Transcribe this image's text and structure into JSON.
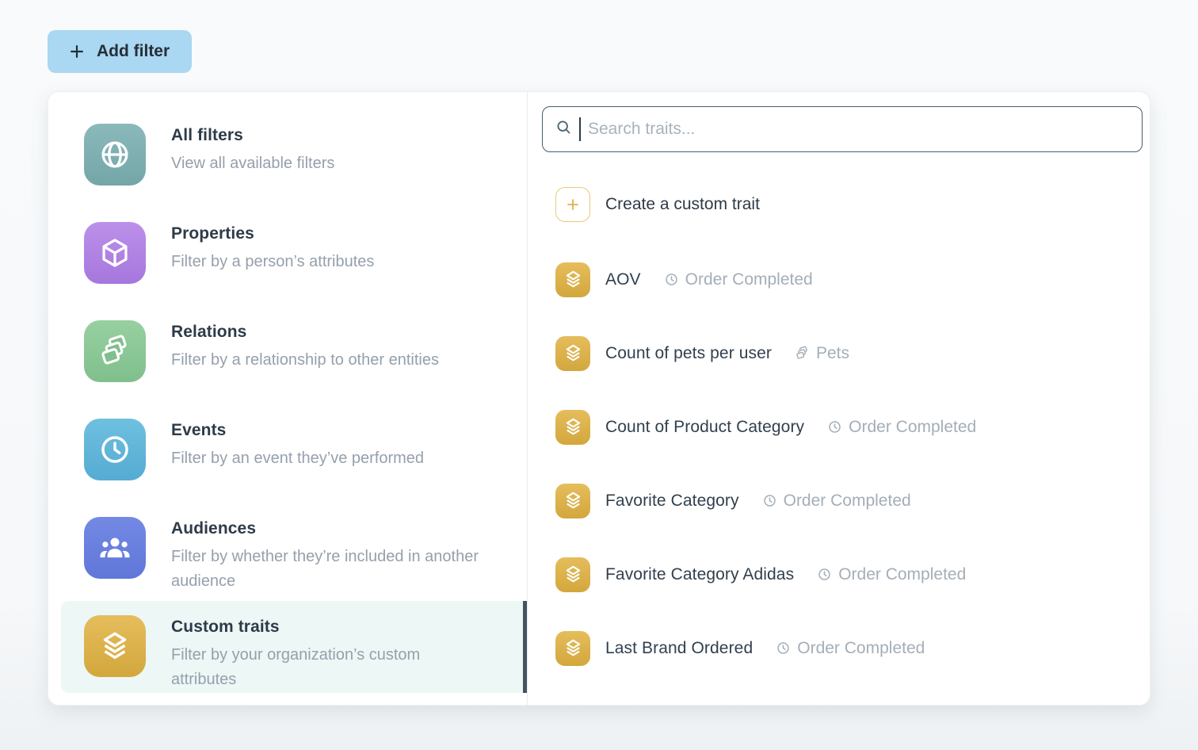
{
  "add_filter_button": {
    "label": "Add filter"
  },
  "colors": {
    "accent_blue": "#aad7f1",
    "selected_row_bg": "#ecf7f6",
    "selected_bar": "#42555f",
    "trait_gold_top": "#e5bd5c",
    "trait_gold_bottom": "#d3a73d"
  },
  "sidebar": {
    "categories": [
      {
        "title": "All filters",
        "subtitle": "View all available filters",
        "icon": "globe-icon",
        "color_top": "#8ab9ba",
        "color_bottom": "#74a6a8",
        "selected": false
      },
      {
        "title": "Properties",
        "subtitle": "Filter by a person’s attributes",
        "icon": "cube-icon",
        "color_top": "#bb90e9",
        "color_bottom": "#a677dd",
        "selected": false
      },
      {
        "title": "Relations",
        "subtitle": "Filter by a relationship to other entities",
        "icon": "stacked-cards-icon",
        "color_top": "#97d0a1",
        "color_bottom": "#80bf8d",
        "selected": false
      },
      {
        "title": "Events",
        "subtitle": "Filter by an event they’ve performed",
        "icon": "clock-icon",
        "color_top": "#6fc0e0",
        "color_bottom": "#55abd2",
        "selected": false
      },
      {
        "title": "Audiences",
        "subtitle": "Filter by whether they’re included in another audience",
        "icon": "people-icon",
        "color_top": "#7389e4",
        "color_bottom": "#6077d9",
        "selected": false
      },
      {
        "title": "Custom traits",
        "subtitle": "Filter by your organization’s custom attributes",
        "icon": "layers-icon",
        "color_top": "#e5bd5c",
        "color_bottom": "#d3a73d",
        "selected": true
      }
    ]
  },
  "search": {
    "placeholder": "Search traits..."
  },
  "create_trait": {
    "label": "Create a custom trait"
  },
  "traits": [
    {
      "name": "AOV",
      "meta_icon": "clock-icon",
      "meta": "Order Completed"
    },
    {
      "name": "Count of pets per user",
      "meta_icon": "stacked-cards-icon",
      "meta": "Pets"
    },
    {
      "name": "Count of Product Category",
      "meta_icon": "clock-icon",
      "meta": "Order Completed"
    },
    {
      "name": "Favorite Category",
      "meta_icon": "clock-icon",
      "meta": "Order Completed"
    },
    {
      "name": "Favorite Category Adidas",
      "meta_icon": "clock-icon",
      "meta": "Order Completed"
    },
    {
      "name": "Last Brand Ordered",
      "meta_icon": "clock-icon",
      "meta": "Order Completed"
    }
  ]
}
